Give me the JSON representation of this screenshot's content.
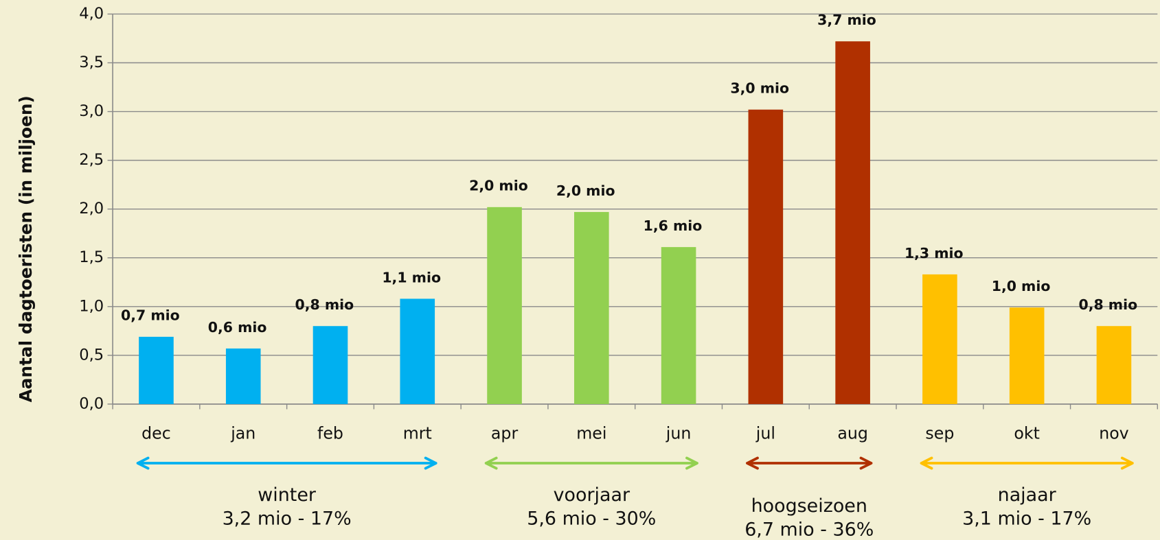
{
  "chart_data": {
    "type": "bar",
    "y_label": "Aantal dagtoeristen (in miljoen)",
    "categories": [
      "dec",
      "jan",
      "feb",
      "mrt",
      "apr",
      "mei",
      "jun",
      "jul",
      "aug",
      "sep",
      "okt",
      "nov"
    ],
    "values": [
      0.69,
      0.57,
      0.8,
      1.08,
      2.02,
      1.97,
      1.61,
      3.02,
      3.72,
      1.33,
      0.99,
      0.8
    ],
    "value_labels": [
      "0,7 mio",
      "0,6 mio",
      "0,8 mio",
      "1,1 mio",
      "2,0 mio",
      "2,0 mio",
      "1,6 mio",
      "3,0 mio",
      "3,7 mio",
      "1,3 mio",
      "1,0 mio",
      "0,8 mio"
    ],
    "colors": [
      "#00b0f0",
      "#00b0f0",
      "#00b0f0",
      "#00b0f0",
      "#92d050",
      "#92d050",
      "#92d050",
      "#b03000",
      "#b03000",
      "#ffc000",
      "#ffc000",
      "#ffc000"
    ],
    "ylim": [
      0,
      4
    ],
    "yticks": [
      {
        "value": 0,
        "label": "0,0"
      },
      {
        "value": 0.5,
        "label": "0,5"
      },
      {
        "value": 1,
        "label": "1,0"
      },
      {
        "value": 1.5,
        "label": "1,5"
      },
      {
        "value": 2,
        "label": "2,0"
      },
      {
        "value": 2.5,
        "label": "2,5"
      },
      {
        "value": 3,
        "label": "3,0"
      },
      {
        "value": 3.5,
        "label": "3,5"
      },
      {
        "value": 4,
        "label": "4,0"
      }
    ],
    "grid": true,
    "seasons": [
      {
        "name": "winter",
        "summary": "3,2 mio - 17%",
        "color": "#00b0f0"
      },
      {
        "name": "voorjaar",
        "summary": "5,6 mio - 30%",
        "color": "#92d050"
      },
      {
        "name": "hoogseizoen",
        "summary": "6,7 mio - 36%",
        "color": "#b03000"
      },
      {
        "name": "najaar",
        "summary": "3,1 mio - 17%",
        "color": "#ffc000"
      }
    ]
  }
}
